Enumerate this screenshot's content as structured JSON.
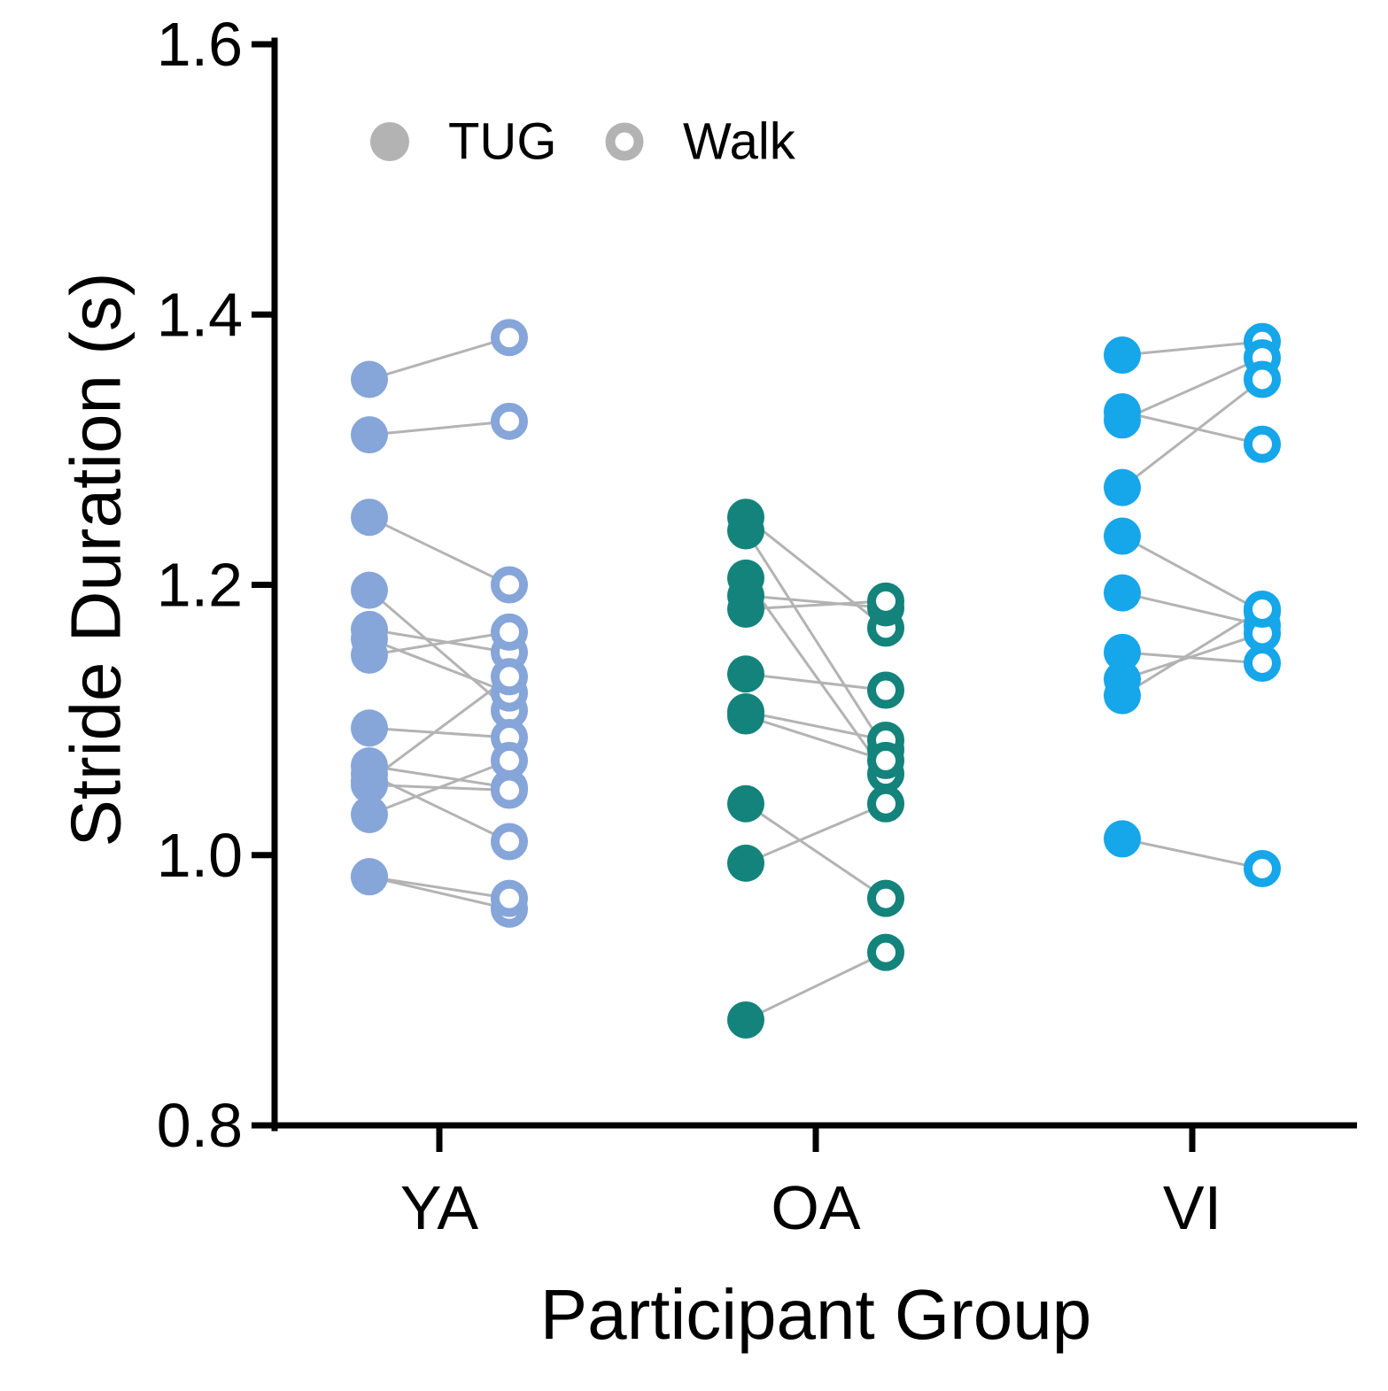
{
  "chart_data": {
    "type": "scatter",
    "title": "",
    "xlabel": "Participant Group",
    "ylabel": "Stride Duration (s)",
    "ylim": [
      0.8,
      1.6
    ],
    "yticks": [
      "0.8",
      "1.0",
      "1.2",
      "1.4",
      "1.6"
    ],
    "categories": [
      "YA",
      "OA",
      "VI"
    ],
    "legend": {
      "placement": "top-left",
      "entries": [
        {
          "label": "TUG",
          "style": "filled",
          "color": "#b3b3b3"
        },
        {
          "label": "Walk",
          "style": "open",
          "color": "#b3b3b3"
        }
      ]
    },
    "connector_color": "#b3b3b3",
    "groups": [
      {
        "category": "YA",
        "color": "#86a5d9",
        "pairs": [
          [
            1.352,
            1.383
          ],
          [
            1.311,
            1.321
          ],
          [
            1.25,
            1.2
          ],
          [
            1.196,
            1.107
          ],
          [
            1.167,
            1.15
          ],
          [
            1.16,
            1.12
          ],
          [
            1.148,
            1.165
          ],
          [
            1.094,
            1.087
          ],
          [
            1.066,
            1.05
          ],
          [
            1.06,
            1.01
          ],
          [
            1.055,
            1.132
          ],
          [
            1.052,
            1.048
          ],
          [
            1.03,
            1.07
          ],
          [
            0.984,
            0.96
          ],
          [
            0.984,
            0.968
          ]
        ]
      },
      {
        "category": "OA",
        "color": "#13837b",
        "pairs": [
          [
            1.25,
            1.168
          ],
          [
            1.24,
            1.078
          ],
          [
            1.205,
            1.06
          ],
          [
            1.192,
            1.183
          ],
          [
            1.182,
            1.188
          ],
          [
            1.134,
            1.122
          ],
          [
            1.106,
            1.085
          ],
          [
            1.103,
            1.07
          ],
          [
            1.038,
            0.968
          ],
          [
            0.994,
            1.038
          ],
          [
            0.878,
            0.928
          ]
        ]
      },
      {
        "category": "VI",
        "color": "#16a6ea",
        "pairs": [
          [
            1.37,
            1.38
          ],
          [
            1.328,
            1.304
          ],
          [
            1.322,
            1.368
          ],
          [
            1.272,
            1.352
          ],
          [
            1.236,
            1.18
          ],
          [
            1.194,
            1.17
          ],
          [
            1.15,
            1.142
          ],
          [
            1.13,
            1.164
          ],
          [
            1.118,
            1.182
          ],
          [
            1.012,
            0.99
          ]
        ]
      }
    ]
  }
}
